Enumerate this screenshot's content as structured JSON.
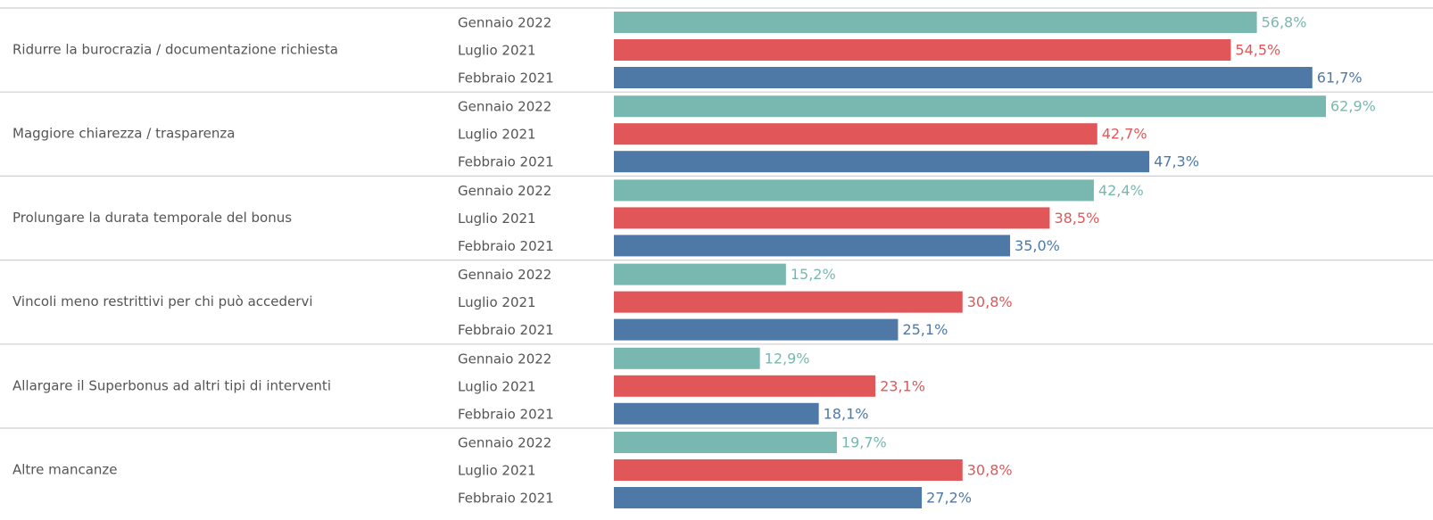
{
  "chart_data": {
    "type": "bar",
    "categories": [
      "Ridurre la burocrazia / documentazione richiesta",
      "Maggiore chiarezza / trasparenza",
      "Prolungare la durata temporale del bonus",
      "Vincoli meno restrittivi per chi può accedervi",
      "Allargare il Superbonus ad altri tipi di interventi",
      "Altre mancanze"
    ],
    "series": [
      {
        "name": "Gennaio 2022",
        "color": "#79b8b0",
        "values": [
          56.8,
          62.9,
          42.4,
          15.2,
          12.9,
          19.7
        ],
        "value_labels": [
          "56,8%",
          "62,9%",
          "42,4%",
          "15,2%",
          "12,9%",
          "19,7%"
        ]
      },
      {
        "name": "Luglio 2021",
        "color": "#e15759",
        "values": [
          54.5,
          42.7,
          38.5,
          30.8,
          23.1,
          30.8
        ],
        "value_labels": [
          "54,5%",
          "42,7%",
          "38,5%",
          "30,8%",
          "23,1%",
          "30,8%"
        ]
      },
      {
        "name": "Febbraio 2021",
        "color": "#4e79a7",
        "values": [
          61.7,
          47.3,
          35.0,
          25.1,
          18.1,
          27.2
        ],
        "value_labels": [
          "61,7%",
          "47,3%",
          "35,0%",
          "25,1%",
          "18,1%",
          "27,2%"
        ]
      }
    ]
  }
}
